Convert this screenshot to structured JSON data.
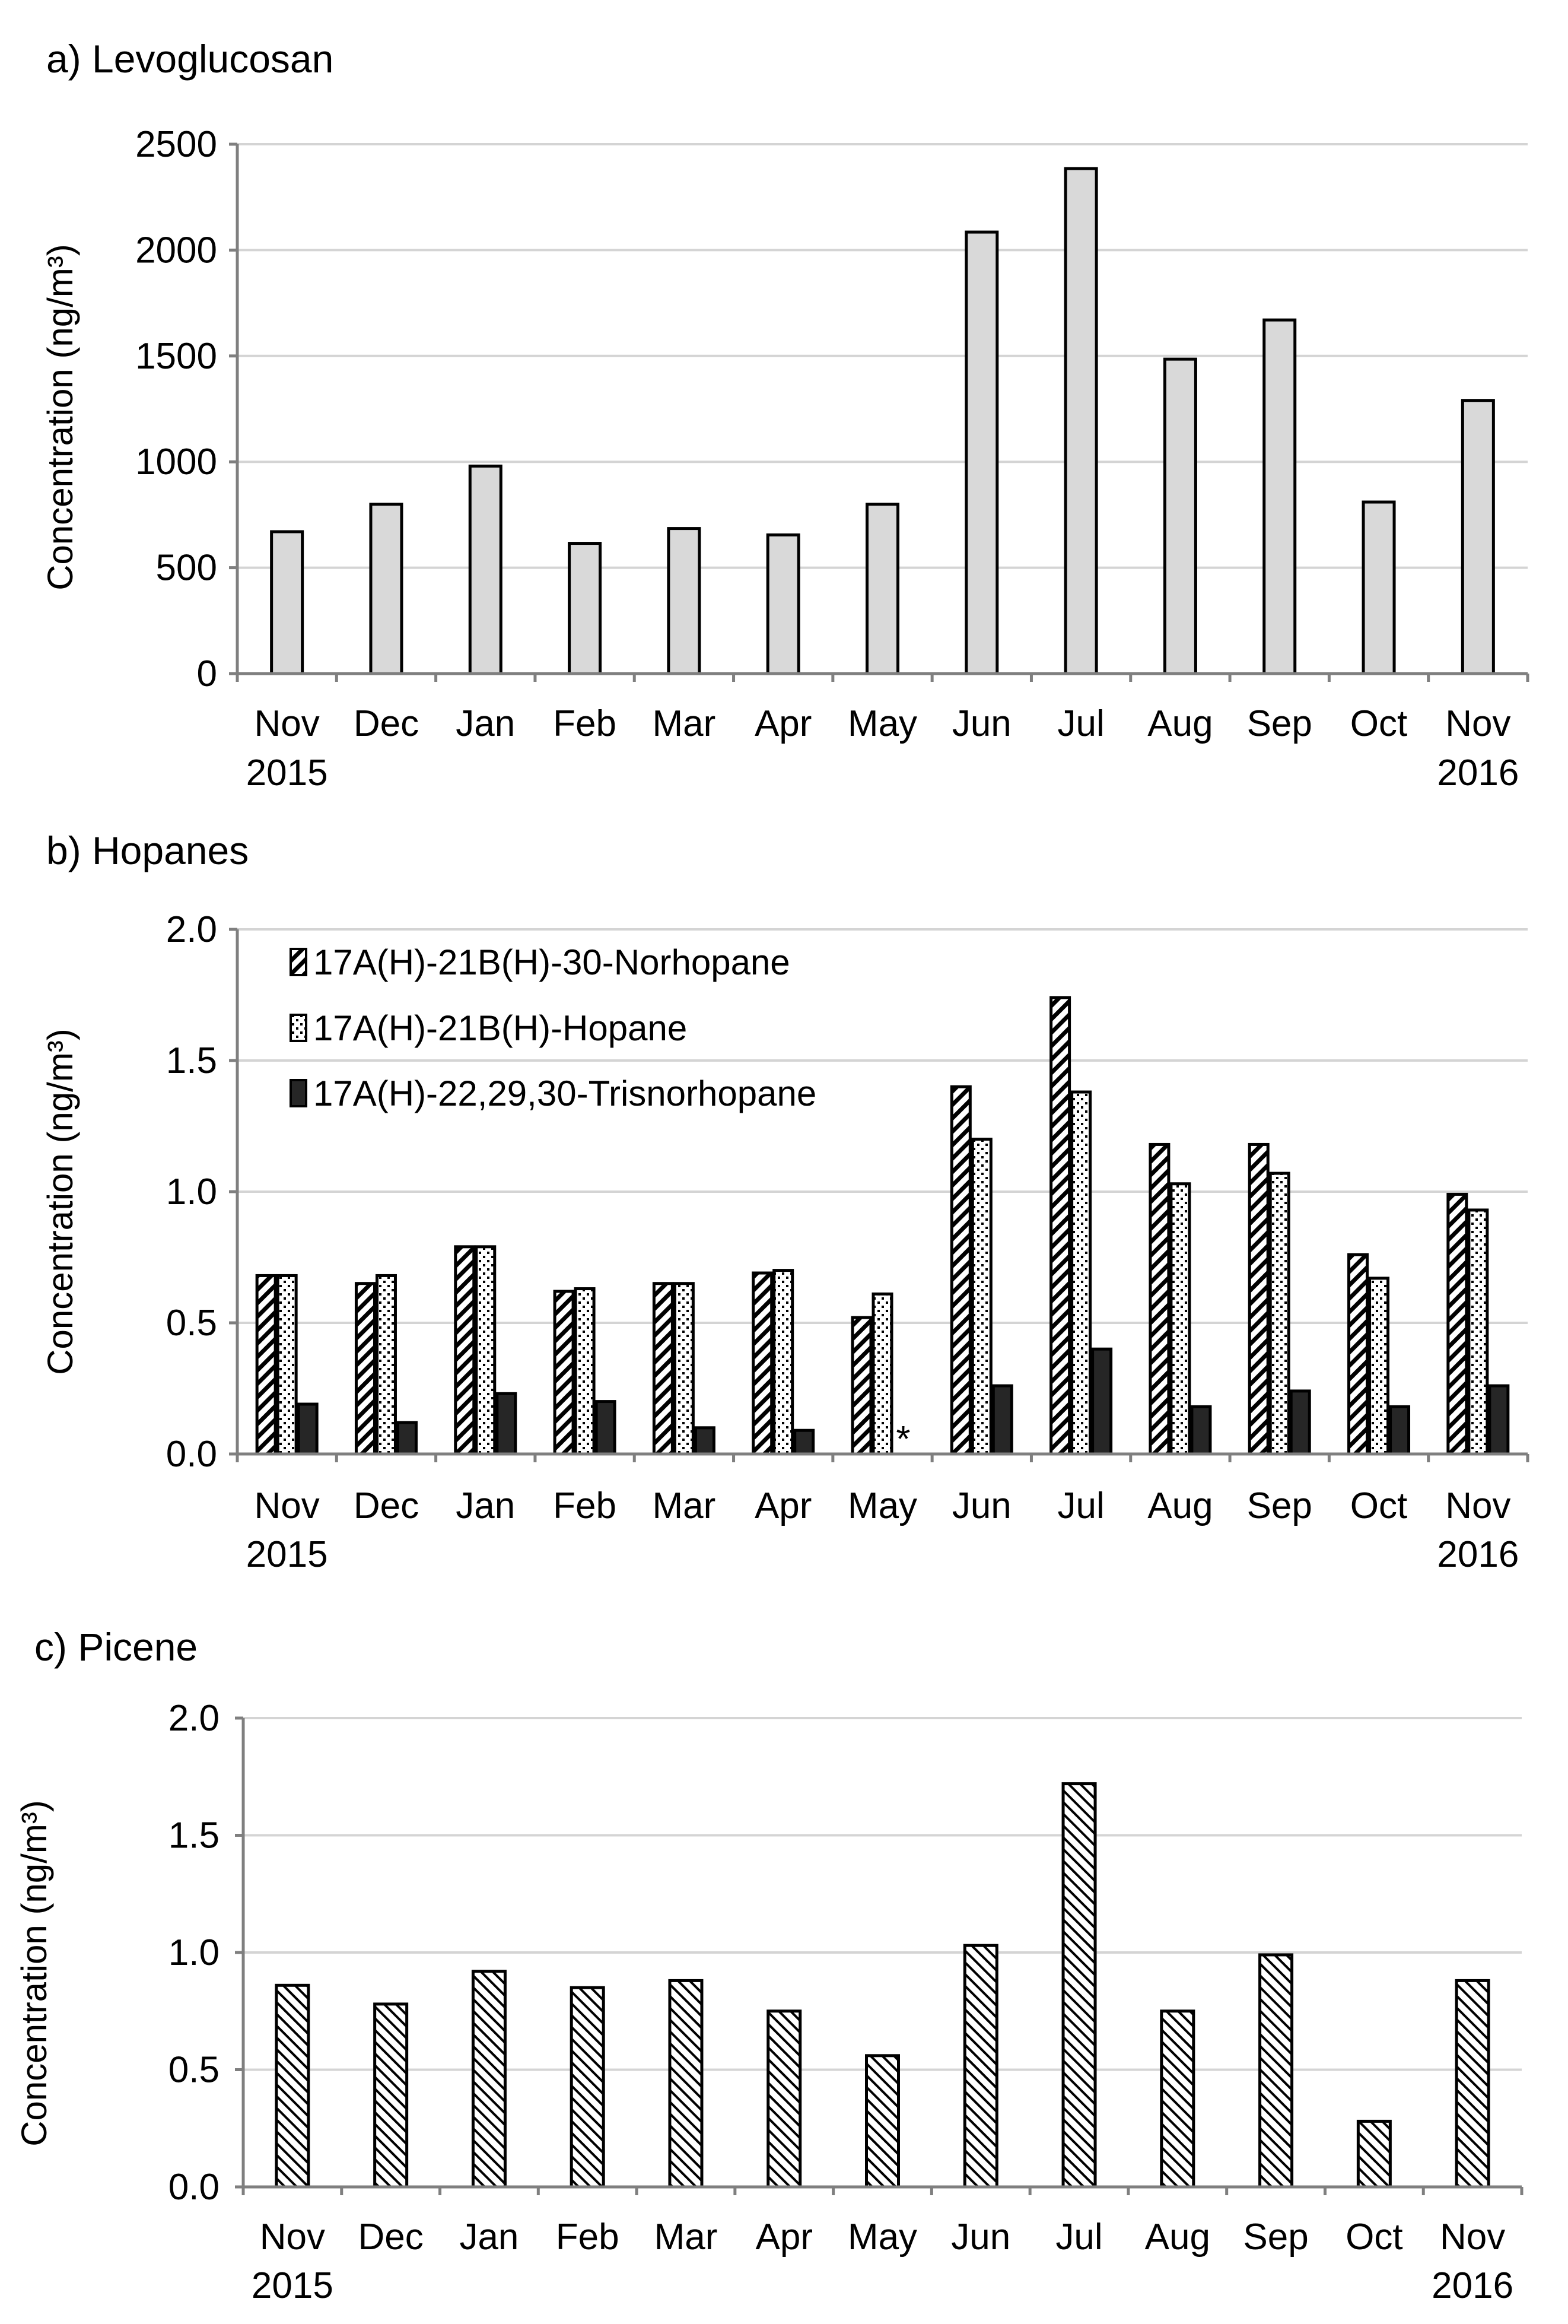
{
  "chart_data": [
    {
      "type": "bar",
      "title": "a) Levoglucosan",
      "ylabel": "Concentration (ng/m³)",
      "xlabel": "",
      "categories": [
        "Nov",
        "Dec",
        "Jan",
        "Feb",
        "Mar",
        "Apr",
        "May",
        "Jun",
        "Jul",
        "Aug",
        "Sep",
        "Oct",
        "Nov"
      ],
      "year_labels": {
        "first": "2015",
        "last": "2016"
      },
      "ylim": [
        0,
        2500
      ],
      "yticks": [
        "0",
        "500",
        "1000",
        "1500",
        "2000",
        "2500"
      ],
      "series": [
        {
          "name": "Levoglucosan",
          "fill": "#d9d9d9",
          "values": [
            670,
            800,
            980,
            615,
            685,
            655,
            800,
            2085,
            2385,
            1485,
            1670,
            810,
            1290
          ]
        }
      ],
      "grid": true
    },
    {
      "type": "bar",
      "title": "b) Hopanes",
      "ylabel": "Concentration (ng/m³)",
      "xlabel": "",
      "categories": [
        "Nov",
        "Dec",
        "Jan",
        "Feb",
        "Mar",
        "Apr",
        "May",
        "Jun",
        "Jul",
        "Aug",
        "Sep",
        "Oct",
        "Nov"
      ],
      "year_labels": {
        "first": "2015",
        "last": "2016"
      },
      "ylim": [
        0,
        2.0
      ],
      "yticks": [
        "0.0",
        "0.5",
        "1.0",
        "1.5",
        "2.0"
      ],
      "legend": [
        "17A(H)-21B(H)-30-Norhopane",
        "17A(H)-21B(H)-Hopane",
        "17A(H)-22,29,30-Trisnorhopane"
      ],
      "legend_position": "top-left",
      "series": [
        {
          "name": "17A(H)-21B(H)-30-Norhopane",
          "pattern": "diag",
          "values": [
            0.68,
            0.65,
            0.79,
            0.62,
            0.65,
            0.69,
            0.52,
            1.4,
            1.74,
            1.18,
            1.18,
            0.76,
            0.99
          ]
        },
        {
          "name": "17A(H)-21B(H)-Hopane",
          "pattern": "dots",
          "values": [
            0.68,
            0.68,
            0.79,
            0.63,
            0.65,
            0.7,
            0.61,
            1.2,
            1.38,
            1.03,
            1.07,
            0.67,
            0.93
          ]
        },
        {
          "name": "17A(H)-22,29,30-Trisnorhopane",
          "pattern": "solid",
          "values": [
            0.19,
            0.12,
            0.23,
            0.2,
            0.1,
            0.09,
            null,
            0.26,
            0.4,
            0.18,
            0.24,
            0.18,
            0.26
          ]
        }
      ],
      "annotations": [
        {
          "category_index": 6,
          "text": "*"
        }
      ],
      "grid": true
    },
    {
      "type": "bar",
      "title": "c) Picene",
      "ylabel": "Concentration (ng/m³)",
      "xlabel": "",
      "categories": [
        "Nov",
        "Dec",
        "Jan",
        "Feb",
        "Mar",
        "Apr",
        "May",
        "Jun",
        "Jul",
        "Aug",
        "Sep",
        "Oct",
        "Nov"
      ],
      "year_labels": {
        "first": "2015",
        "last": "2016"
      },
      "ylim": [
        0,
        2.0
      ],
      "yticks": [
        "0.0",
        "0.5",
        "1.0",
        "1.5",
        "2.0"
      ],
      "series": [
        {
          "name": "Picene",
          "pattern": "diagfine",
          "values": [
            0.86,
            0.78,
            0.92,
            0.85,
            0.88,
            0.75,
            0.56,
            1.03,
            1.72,
            0.75,
            0.99,
            0.28,
            0.88
          ]
        }
      ],
      "grid": true
    }
  ]
}
